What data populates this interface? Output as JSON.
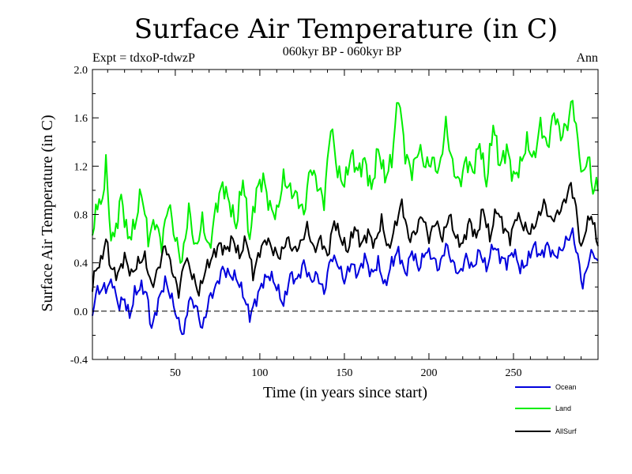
{
  "chart_data": {
    "type": "line",
    "title": "Surface Air Temperature (in C)",
    "subtitle": "060kyr BP - 060kyr BP",
    "experiment": "Expt = tdxoP-tdwzP",
    "period": "Ann",
    "xlabel": "Time (in years since start)",
    "ylabel": "Surface Air Temperature (in C)",
    "xlim": [
      1,
      300
    ],
    "ylim": [
      -0.4,
      2.0
    ],
    "xticks": [
      50,
      100,
      150,
      200,
      250
    ],
    "yticks": [
      "-0.4",
      "0.0",
      "0.4",
      "0.8",
      "1.2",
      "1.6",
      "2.0"
    ],
    "reference_line": 0.0,
    "legend_position": "bottom-right, below plot",
    "series": [
      {
        "name": "Ocean",
        "color": "#0000dd",
        "anchors": [
          [
            1,
            -0.03
          ],
          [
            3,
            0.15
          ],
          [
            6,
            0.18
          ],
          [
            10,
            0.2
          ],
          [
            13,
            0.25
          ],
          [
            16,
            0.05
          ],
          [
            20,
            0.1
          ],
          [
            23,
            -0.05
          ],
          [
            26,
            0.15
          ],
          [
            30,
            0.2
          ],
          [
            33,
            0.15
          ],
          [
            36,
            -0.15
          ],
          [
            40,
            0.08
          ],
          [
            44,
            0.25
          ],
          [
            48,
            0.1
          ],
          [
            52,
            -0.1
          ],
          [
            55,
            -0.2
          ],
          [
            58,
            0.1
          ],
          [
            62,
            0.05
          ],
          [
            66,
            -0.15
          ],
          [
            70,
            0.1
          ],
          [
            74,
            0.2
          ],
          [
            78,
            0.35
          ],
          [
            82,
            0.3
          ],
          [
            86,
            0.28
          ],
          [
            90,
            0.15
          ],
          [
            94,
            -0.04
          ],
          [
            98,
            0.1
          ],
          [
            102,
            0.25
          ],
          [
            106,
            0.3
          ],
          [
            110,
            0.2
          ],
          [
            114,
            0.05
          ],
          [
            118,
            0.3
          ],
          [
            122,
            0.25
          ],
          [
            126,
            0.4
          ],
          [
            130,
            0.25
          ],
          [
            134,
            0.3
          ],
          [
            138,
            0.15
          ],
          [
            142,
            0.45
          ],
          [
            146,
            0.4
          ],
          [
            150,
            0.25
          ],
          [
            154,
            0.4
          ],
          [
            158,
            0.3
          ],
          [
            162,
            0.45
          ],
          [
            166,
            0.3
          ],
          [
            170,
            0.4
          ],
          [
            174,
            0.2
          ],
          [
            178,
            0.4
          ],
          [
            182,
            0.5
          ],
          [
            186,
            0.3
          ],
          [
            190,
            0.5
          ],
          [
            194,
            0.35
          ],
          [
            198,
            0.5
          ],
          [
            202,
            0.45
          ],
          [
            206,
            0.35
          ],
          [
            210,
            0.55
          ],
          [
            214,
            0.4
          ],
          [
            218,
            0.3
          ],
          [
            222,
            0.45
          ],
          [
            226,
            0.35
          ],
          [
            230,
            0.5
          ],
          [
            234,
            0.35
          ],
          [
            238,
            0.55
          ],
          [
            242,
            0.45
          ],
          [
            246,
            0.4
          ],
          [
            250,
            0.5
          ],
          [
            254,
            0.35
          ],
          [
            258,
            0.4
          ],
          [
            262,
            0.55
          ],
          [
            266,
            0.45
          ],
          [
            270,
            0.55
          ],
          [
            274,
            0.45
          ],
          [
            278,
            0.5
          ],
          [
            282,
            0.6
          ],
          [
            285,
            0.65
          ],
          [
            288,
            0.45
          ],
          [
            291,
            0.2
          ],
          [
            294,
            0.4
          ],
          [
            297,
            0.5
          ],
          [
            300,
            0.38
          ]
        ]
      },
      {
        "name": "Land",
        "color": "#00ee00",
        "anchors": [
          [
            1,
            0.65
          ],
          [
            3,
            0.8
          ],
          [
            5,
            0.95
          ],
          [
            7,
            0.85
          ],
          [
            9,
            1.3
          ],
          [
            11,
            0.7
          ],
          [
            14,
            0.6
          ],
          [
            18,
            0.95
          ],
          [
            22,
            0.6
          ],
          [
            26,
            0.7
          ],
          [
            30,
            1.0
          ],
          [
            34,
            0.6
          ],
          [
            38,
            0.75
          ],
          [
            42,
            0.55
          ],
          [
            46,
            0.9
          ],
          [
            50,
            0.6
          ],
          [
            54,
            0.4
          ],
          [
            58,
            0.85
          ],
          [
            62,
            0.5
          ],
          [
            66,
            0.75
          ],
          [
            70,
            0.5
          ],
          [
            74,
            0.85
          ],
          [
            78,
            1.05
          ],
          [
            82,
            0.9
          ],
          [
            86,
            0.7
          ],
          [
            90,
            1.1
          ],
          [
            94,
            0.6
          ],
          [
            98,
            1.0
          ],
          [
            102,
            1.1
          ],
          [
            106,
            0.85
          ],
          [
            110,
            0.8
          ],
          [
            114,
            1.1
          ],
          [
            118,
            1.0
          ],
          [
            122,
            0.95
          ],
          [
            126,
            0.8
          ],
          [
            130,
            1.2
          ],
          [
            134,
            1.05
          ],
          [
            138,
            0.9
          ],
          [
            142,
            1.55
          ],
          [
            146,
            1.15
          ],
          [
            150,
            1.05
          ],
          [
            154,
            1.3
          ],
          [
            158,
            1.15
          ],
          [
            162,
            1.25
          ],
          [
            166,
            1.0
          ],
          [
            170,
            1.35
          ],
          [
            174,
            1.1
          ],
          [
            178,
            1.25
          ],
          [
            182,
            1.8
          ],
          [
            186,
            1.3
          ],
          [
            190,
            1.15
          ],
          [
            194,
            1.35
          ],
          [
            198,
            1.2
          ],
          [
            202,
            1.25
          ],
          [
            206,
            1.15
          ],
          [
            210,
            1.55
          ],
          [
            214,
            1.2
          ],
          [
            218,
            1.05
          ],
          [
            222,
            1.25
          ],
          [
            226,
            1.15
          ],
          [
            230,
            1.4
          ],
          [
            234,
            1.05
          ],
          [
            238,
            1.55
          ],
          [
            242,
            1.2
          ],
          [
            246,
            1.35
          ],
          [
            250,
            1.1
          ],
          [
            254,
            1.2
          ],
          [
            258,
            1.4
          ],
          [
            262,
            1.25
          ],
          [
            266,
            1.55
          ],
          [
            270,
            1.35
          ],
          [
            274,
            1.65
          ],
          [
            278,
            1.45
          ],
          [
            282,
            1.55
          ],
          [
            285,
            1.75
          ],
          [
            288,
            1.4
          ],
          [
            291,
            1.1
          ],
          [
            294,
            1.3
          ],
          [
            297,
            1.0
          ],
          [
            300,
            1.05
          ]
        ]
      },
      {
        "name": "AllSurf",
        "color": "#000000",
        "anchors": [
          [
            1,
            0.2
          ],
          [
            3,
            0.35
          ],
          [
            6,
            0.4
          ],
          [
            9,
            0.6
          ],
          [
            12,
            0.35
          ],
          [
            16,
            0.3
          ],
          [
            20,
            0.45
          ],
          [
            24,
            0.3
          ],
          [
            28,
            0.4
          ],
          [
            32,
            0.45
          ],
          [
            36,
            0.2
          ],
          [
            40,
            0.35
          ],
          [
            44,
            0.55
          ],
          [
            48,
            0.35
          ],
          [
            52,
            0.15
          ],
          [
            56,
            0.45
          ],
          [
            60,
            0.3
          ],
          [
            64,
            0.15
          ],
          [
            68,
            0.35
          ],
          [
            72,
            0.45
          ],
          [
            76,
            0.55
          ],
          [
            80,
            0.5
          ],
          [
            84,
            0.6
          ],
          [
            88,
            0.45
          ],
          [
            92,
            0.6
          ],
          [
            96,
            0.3
          ],
          [
            100,
            0.5
          ],
          [
            104,
            0.6
          ],
          [
            108,
            0.5
          ],
          [
            112,
            0.45
          ],
          [
            116,
            0.6
          ],
          [
            120,
            0.5
          ],
          [
            124,
            0.55
          ],
          [
            128,
            0.7
          ],
          [
            132,
            0.5
          ],
          [
            136,
            0.6
          ],
          [
            140,
            0.45
          ],
          [
            144,
            0.75
          ],
          [
            148,
            0.6
          ],
          [
            152,
            0.5
          ],
          [
            156,
            0.7
          ],
          [
            160,
            0.55
          ],
          [
            164,
            0.65
          ],
          [
            168,
            0.55
          ],
          [
            172,
            0.75
          ],
          [
            176,
            0.5
          ],
          [
            180,
            0.7
          ],
          [
            184,
            0.9
          ],
          [
            188,
            0.6
          ],
          [
            192,
            0.65
          ],
          [
            196,
            0.8
          ],
          [
            200,
            0.6
          ],
          [
            204,
            0.75
          ],
          [
            208,
            0.6
          ],
          [
            212,
            0.8
          ],
          [
            216,
            0.6
          ],
          [
            220,
            0.55
          ],
          [
            224,
            0.75
          ],
          [
            228,
            0.6
          ],
          [
            232,
            0.85
          ],
          [
            236,
            0.6
          ],
          [
            240,
            0.85
          ],
          [
            244,
            0.7
          ],
          [
            248,
            0.6
          ],
          [
            252,
            0.8
          ],
          [
            256,
            0.7
          ],
          [
            260,
            0.65
          ],
          [
            264,
            0.75
          ],
          [
            268,
            0.9
          ],
          [
            272,
            0.75
          ],
          [
            276,
            0.8
          ],
          [
            280,
            0.9
          ],
          [
            284,
            1.05
          ],
          [
            287,
            0.85
          ],
          [
            290,
            0.5
          ],
          [
            293,
            0.7
          ],
          [
            296,
            0.8
          ],
          [
            300,
            0.55
          ]
        ]
      }
    ]
  }
}
